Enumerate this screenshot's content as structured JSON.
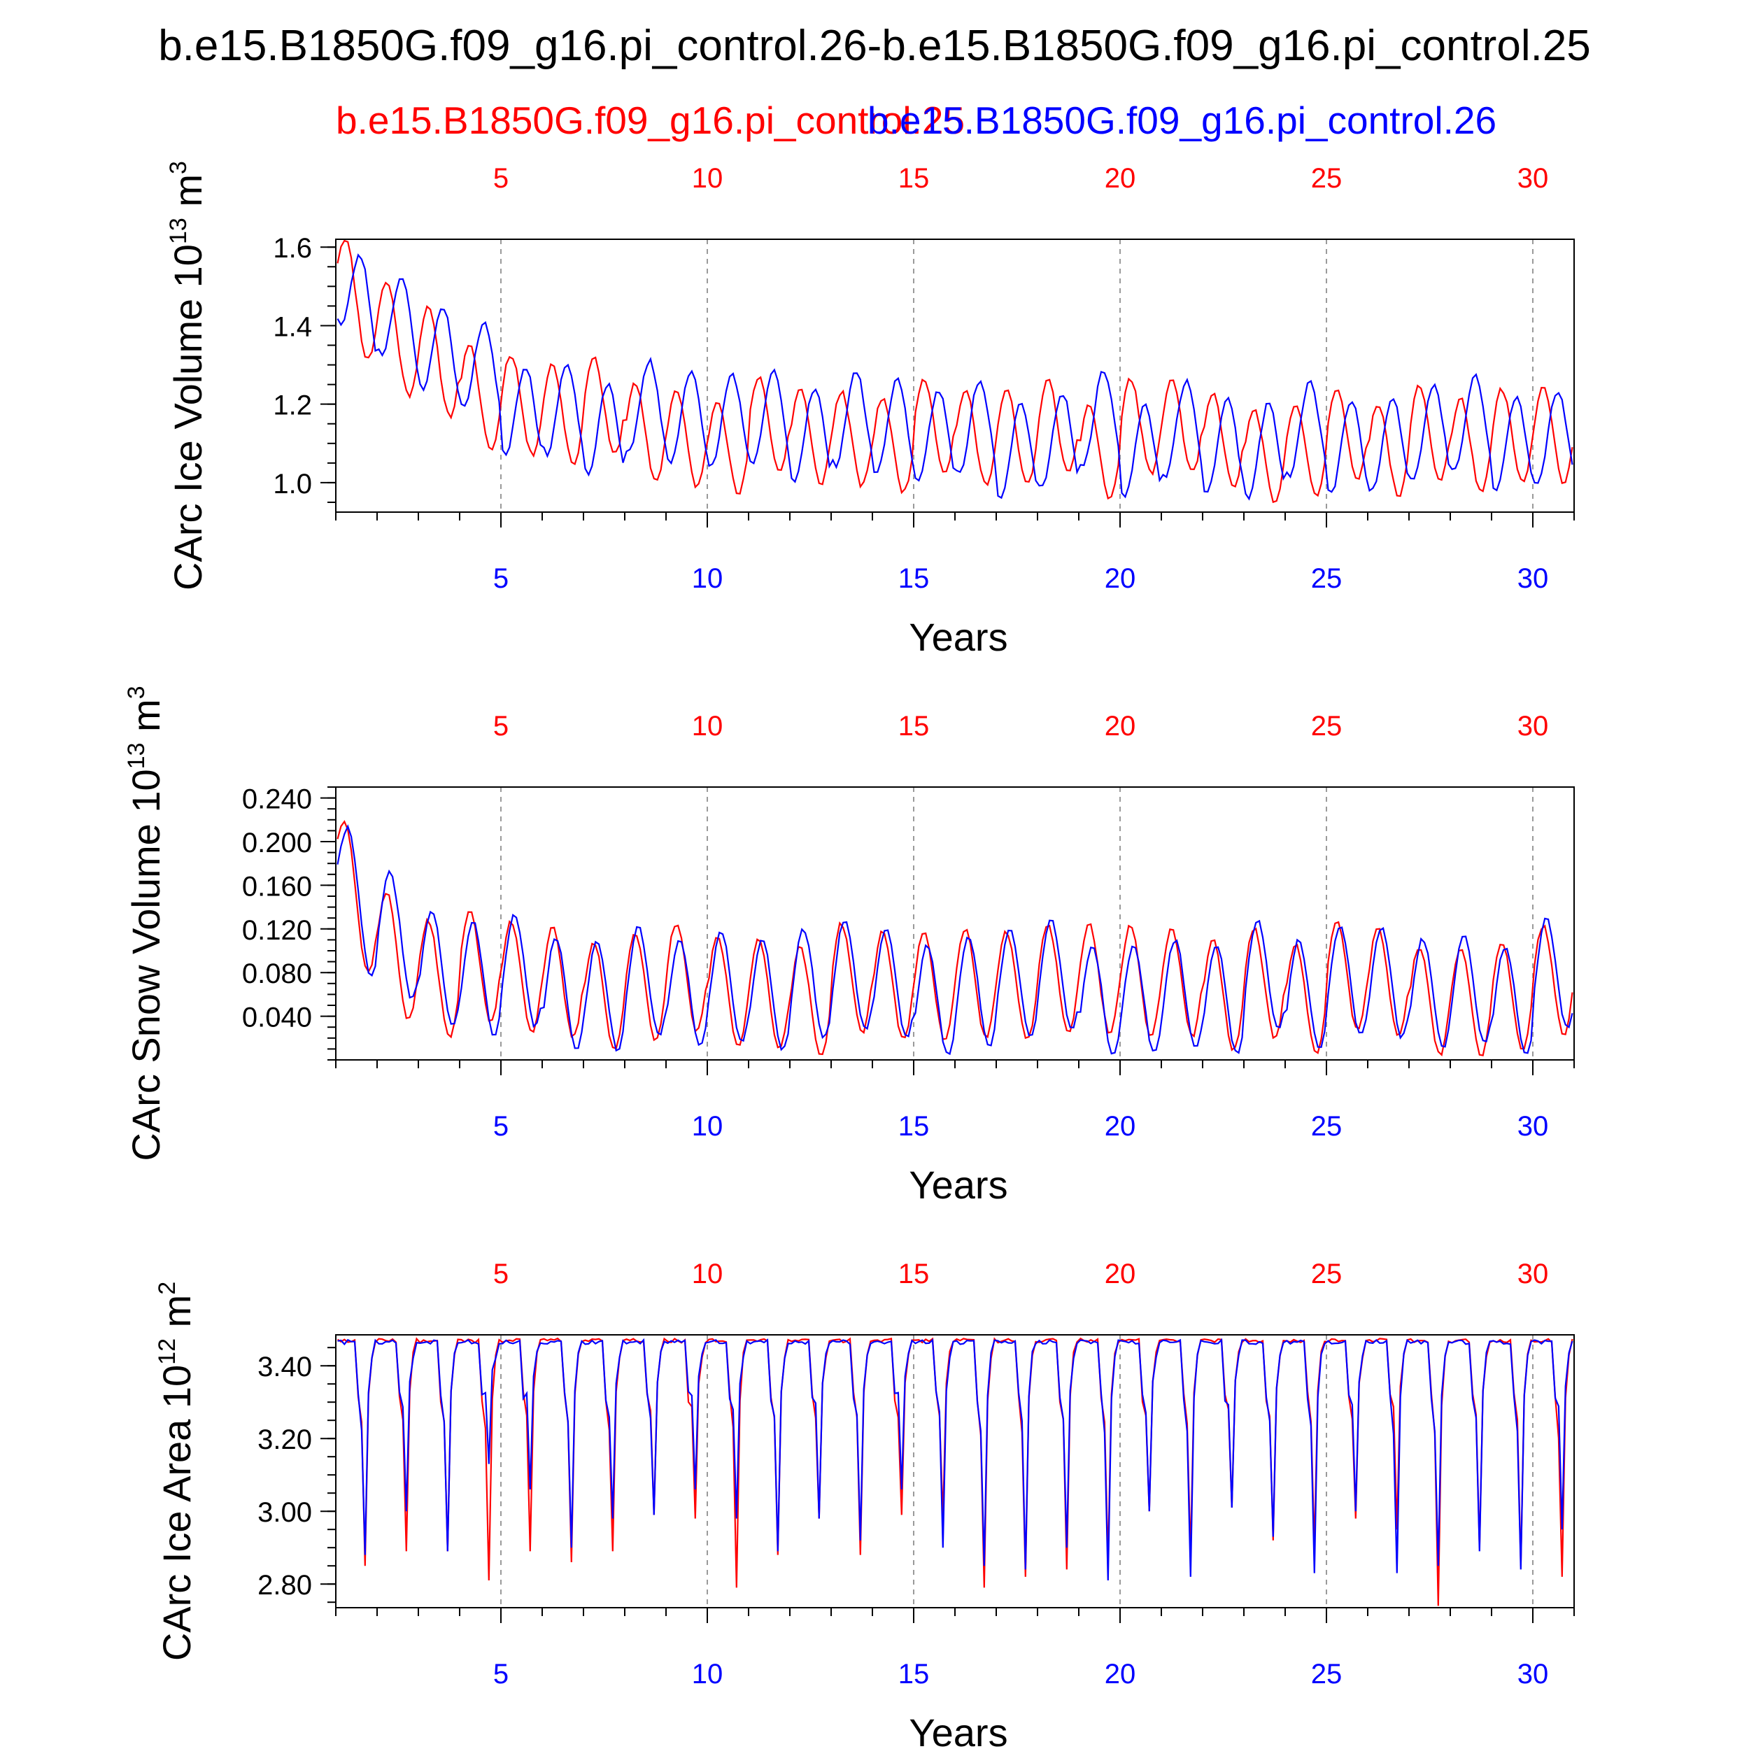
{
  "title": "b.e15.B1850G.f09_g16.pi_control.26-b.e15.B1850G.f09_g16.pi_control.25",
  "legend": {
    "red_case": "b.e15.B1850G.f09_g16.pi_control.25",
    "blue_case": "b.e15.B1850G.f09_g16.pi_control.26"
  },
  "colors": {
    "red": "#ff0000",
    "blue": "#0000ff",
    "frame": "#000000",
    "grid": "#9a9a9a"
  },
  "chart_data": [
    {
      "type": "line",
      "name": "ice-volume",
      "ylabel": "CArc Ice Volume",
      "yunit_base": "10",
      "yunit_exp": "13",
      "yunit_tail": "m",
      "yunit_tail_exp": "3",
      "xlabel": "Years",
      "xlim": [
        1,
        31
      ],
      "ylim": [
        0.925,
        1.62
      ],
      "xticks": [
        5,
        10,
        15,
        20,
        25,
        30
      ],
      "xtick_labels": [
        "5",
        "10",
        "15",
        "20",
        "25",
        "30"
      ],
      "yticks": [
        1.0,
        1.2,
        1.4,
        1.6
      ],
      "ytick_labels": [
        "1.0",
        "1.2",
        "1.4",
        "1.6"
      ],
      "yminor_step": 0.05,
      "series": [
        {
          "name": "b.e15.B1850G.f09_g16.pi_control.25",
          "color": "red",
          "mean_start": 1.56,
          "mean_end": 1.1,
          "mean_tau": 3,
          "amp": 0.12,
          "phase": 0.0,
          "noise": 0.04,
          "seed": 11
        },
        {
          "name": "b.e15.B1850G.f09_g16.pi_control.26",
          "color": "blue",
          "mean_start": 1.56,
          "mean_end": 1.12,
          "mean_tau": 3,
          "amp": 0.12,
          "phase": 0.35,
          "noise": 0.04,
          "seed": 23
        }
      ]
    },
    {
      "type": "line",
      "name": "snow-volume",
      "ylabel": "CArc Snow Volume",
      "yunit_base": "10",
      "yunit_exp": "13",
      "yunit_tail": "m",
      "yunit_tail_exp": "3",
      "xlabel": "Years",
      "xlim": [
        1,
        31
      ],
      "ylim": [
        0.0,
        0.25
      ],
      "xticks": [
        5,
        10,
        15,
        20,
        25,
        30
      ],
      "xtick_labels": [
        "5",
        "10",
        "15",
        "20",
        "25",
        "30"
      ],
      "yticks": [
        0.04,
        0.08,
        0.12,
        0.16,
        0.2,
        0.24
      ],
      "ytick_labels": [
        "0.040",
        "0.080",
        "0.120",
        "0.160",
        "0.200",
        "0.240"
      ],
      "yminor_step": 0.01,
      "series": [
        {
          "name": "b.e15.B1850G.f09_g16.pi_control.25",
          "color": "red",
          "mean_start": 0.2,
          "mean_end": 0.066,
          "mean_tau": 1.2,
          "amp": 0.05,
          "phase": 0.0,
          "noise": 0.012,
          "seed": 37
        },
        {
          "name": "b.e15.B1850G.f09_g16.pi_control.26",
          "color": "blue",
          "mean_start": 0.2,
          "mean_end": 0.066,
          "mean_tau": 1.2,
          "amp": 0.05,
          "phase": 0.08,
          "noise": 0.012,
          "seed": 41
        }
      ]
    },
    {
      "type": "line",
      "name": "ice-area",
      "ylabel": "CArc Ice Area",
      "yunit_base": "10",
      "yunit_exp": "12",
      "yunit_tail": "m",
      "yunit_tail_exp": "2",
      "xlabel": "Years",
      "xlim": [
        1,
        31
      ],
      "ylim": [
        2.735,
        3.485
      ],
      "xticks": [
        5,
        10,
        15,
        20,
        25,
        30
      ],
      "xtick_labels": [
        "5",
        "10",
        "15",
        "20",
        "25",
        "30"
      ],
      "yticks": [
        2.8,
        3.0,
        3.2,
        3.4
      ],
      "ytick_labels": [
        "2.80",
        "3.00",
        "3.20",
        "3.40"
      ],
      "yminor_step": 0.05,
      "seasonal_minima": {
        "red": [
          2.85,
          2.89,
          2.89,
          2.81,
          2.89,
          2.86,
          2.89,
          2.99,
          2.98,
          2.79,
          2.88,
          2.98,
          2.88,
          2.99,
          2.98,
          2.79,
          2.82,
          2.84,
          2.86,
          3.0,
          2.88,
          3.01,
          2.92,
          2.9,
          2.98,
          2.95,
          2.74,
          2.9,
          2.85,
          2.82
        ],
        "blue": [
          2.88,
          3.0,
          2.89,
          3.13,
          3.06,
          2.9,
          2.98,
          2.99,
          3.06,
          2.98,
          2.89,
          2.98,
          2.92,
          3.06,
          2.9,
          2.85,
          2.84,
          2.9,
          2.81,
          3.0,
          2.82,
          3.01,
          2.93,
          2.83,
          3.0,
          2.83,
          2.85,
          2.89,
          2.84,
          2.95
        ]
      }
    }
  ]
}
